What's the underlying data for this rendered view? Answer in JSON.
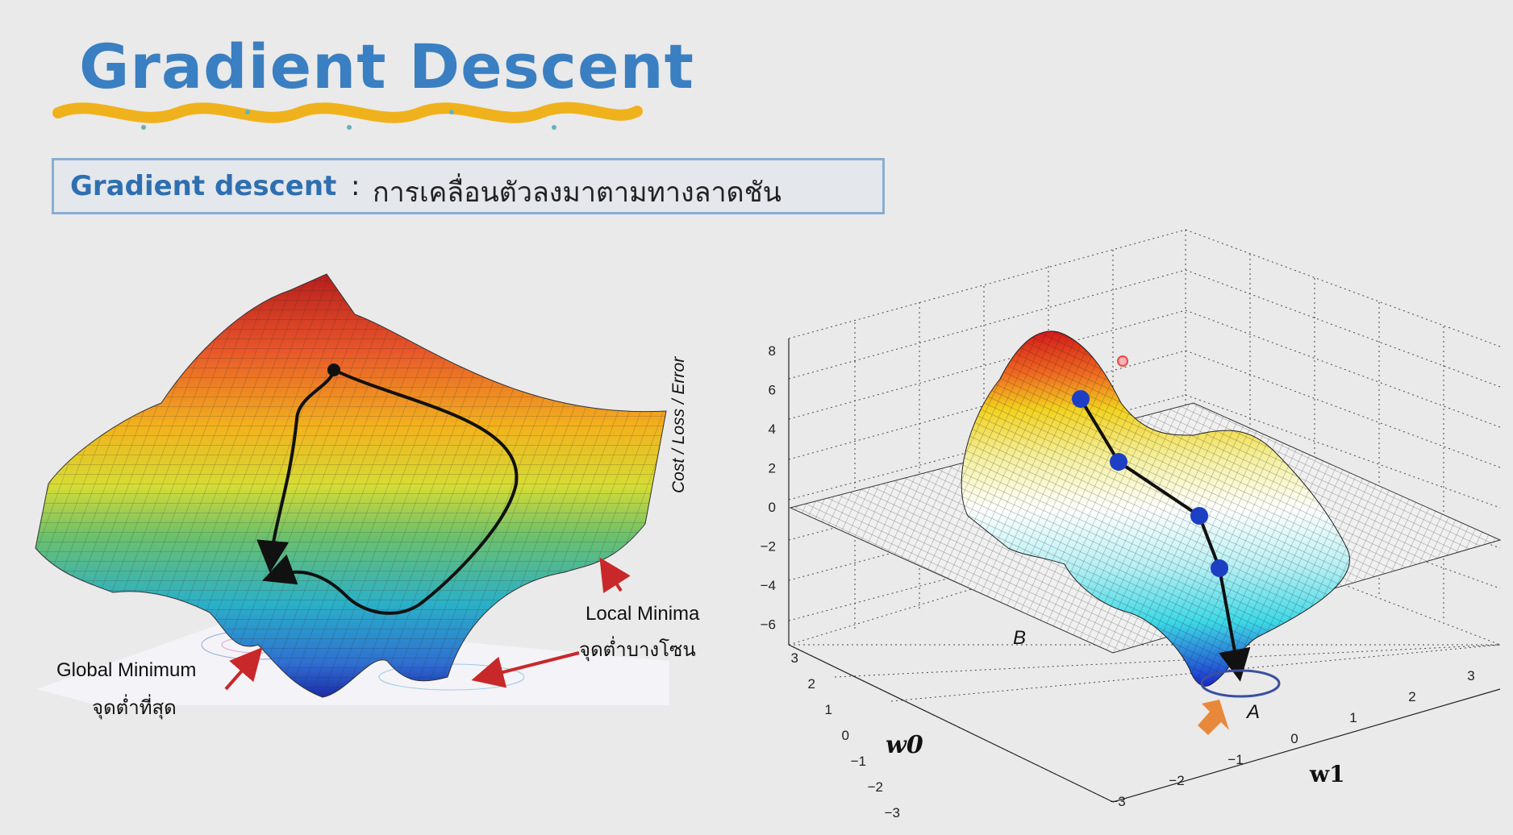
{
  "title": "Gradient Descent",
  "subtitle": {
    "term": "Gradient descent",
    "separator": ":",
    "description": "การเคลื่อนตัวลงมาตามทางลาดชัน"
  },
  "left_figure": {
    "global_minimum_label": "Global Minimum",
    "global_minimum_thai": "จุดต่ำที่สุด",
    "local_minima_label": "Local Minima",
    "local_minima_thai": "จุดต่ำบางโซน"
  },
  "right_figure": {
    "z_axis_label": "Cost / Loss / Error",
    "z_ticks": [
      "8",
      "6",
      "4",
      "2",
      "0",
      "−2",
      "−4",
      "−6"
    ],
    "w0_label": "w0",
    "w1_label": "w1",
    "w0_ticks": [
      "3",
      "2",
      "1",
      "0",
      "−1",
      "−2",
      "−3"
    ],
    "w1_ticks": [
      "−3",
      "−2",
      "−1",
      "0",
      "1",
      "2",
      "3"
    ],
    "point_a_label": "A",
    "point_b_label": "B"
  },
  "colors": {
    "title": "#3a7fc1",
    "wave": "#f0b21c",
    "arrow_red": "#c8282a",
    "marker_blue": "#1d3fc4",
    "pointer_orange": "#e8883a"
  }
}
